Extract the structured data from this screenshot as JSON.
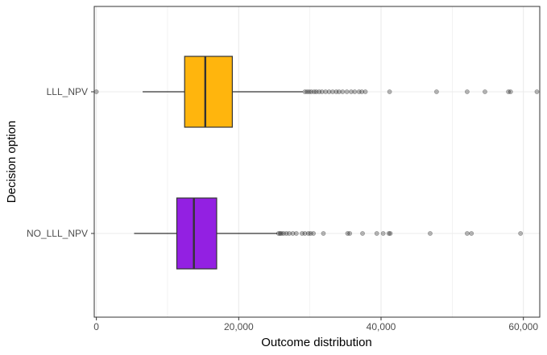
{
  "chart_data": {
    "type": "boxplot",
    "orientation": "horizontal",
    "xlabel": "Outcome distribution",
    "ylabel": "Decision option",
    "xlim": [
      -300,
      62300
    ],
    "x_ticks": [
      0,
      20000,
      40000,
      60000
    ],
    "x_tick_labels": [
      "0",
      "20,000",
      "40,000",
      "60,000"
    ],
    "grid": true,
    "categories": [
      "LLL_NPV",
      "NO_LLL_NPV"
    ],
    "series": [
      {
        "category": "LLL_NPV",
        "color": "#FFB50D",
        "whisker_low": 6500,
        "q1": 12400,
        "median": 15300,
        "q3": 19100,
        "whisker_high": 29000,
        "outliers": [
          0,
          29300,
          29600,
          29900,
          30200,
          30600,
          30900,
          31300,
          31700,
          32200,
          32700,
          33200,
          33700,
          34100,
          34600,
          35200,
          35800,
          36300,
          36900,
          37300,
          37800,
          41200,
          47800,
          52100,
          54600,
          57900,
          58200,
          61900
        ]
      },
      {
        "category": "NO_LLL_NPV",
        "color": "#9320E2",
        "whisker_low": 5300,
        "q1": 11300,
        "median": 13700,
        "q3": 16900,
        "whisker_high": 25400,
        "outliers": [
          25600,
          25800,
          26000,
          26300,
          26700,
          27100,
          27600,
          28100,
          28900,
          29300,
          29800,
          30100,
          30500,
          31900,
          35300,
          35600,
          37400,
          39400,
          40300,
          41100,
          41300,
          46900,
          52100,
          52700,
          59600
        ]
      }
    ]
  },
  "colors": {
    "grid": "#ebebeb",
    "panel_border": "#333333",
    "box_stroke": "#333333",
    "outlier": "#000000"
  }
}
